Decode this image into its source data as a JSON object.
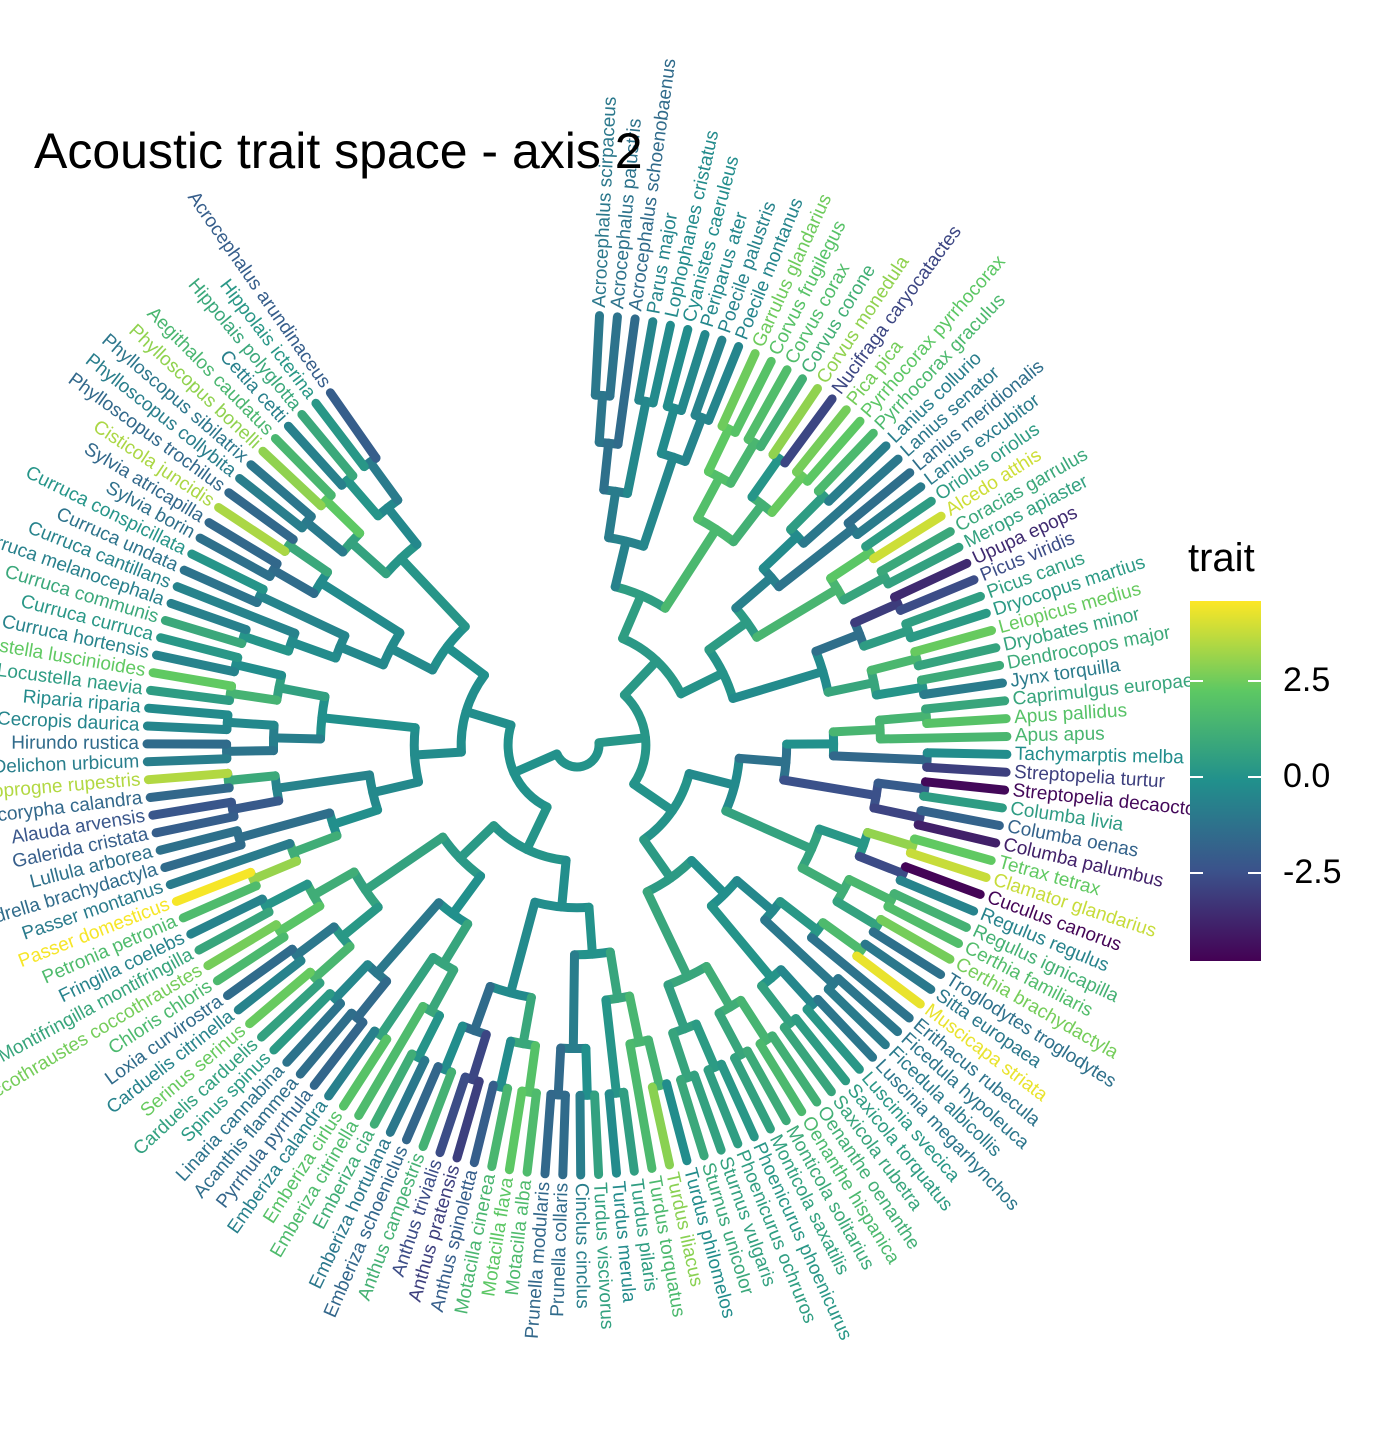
{
  "chart_data": {
    "type": "circular-phylogeny",
    "title": "Acoustic trait space - axis 2",
    "legend": {
      "title": "trait",
      "ticks": [
        2.5,
        0.0,
        -2.5
      ],
      "tick_labels": [
        "2.5",
        "0.0",
        "-2.5"
      ],
      "range": [
        -4.8,
        4.6
      ],
      "placement": "right",
      "colormap": [
        "#440154",
        "#3B528B",
        "#21908C",
        "#5DC863",
        "#FDE725"
      ]
    },
    "tips": [
      {
        "name": "Acrocephalus scirpaceus",
        "trait": -1.0
      },
      {
        "name": "Acrocephalus palustris",
        "trait": -1.2
      },
      {
        "name": "Acrocephalus schoenobaenus",
        "trait": -1.5
      },
      {
        "name": "Parus major",
        "trait": -0.5
      },
      {
        "name": "Lophophanes cristatus",
        "trait": -0.3
      },
      {
        "name": "Cyanistes caeruleus",
        "trait": -0.2
      },
      {
        "name": "Periparus ater",
        "trait": -0.4
      },
      {
        "name": "Poecile palustris",
        "trait": -0.6
      },
      {
        "name": "Poecile montanus",
        "trait": -0.5
      },
      {
        "name": "Garrulus glandarius",
        "trait": 2.5
      },
      {
        "name": "Corvus frugilegus",
        "trait": 2.0
      },
      {
        "name": "Corvus corax",
        "trait": 1.8
      },
      {
        "name": "Corvus corone",
        "trait": 1.2
      },
      {
        "name": "Corvus monedula",
        "trait": 3.0
      },
      {
        "name": "Nucifraga caryocatactes",
        "trait": -2.8
      },
      {
        "name": "Pica pica",
        "trait": 2.6
      },
      {
        "name": "Pyrrhocorax pyrrhocorax",
        "trait": 2.2
      },
      {
        "name": "Pyrrhocorax graculus",
        "trait": 1.6
      },
      {
        "name": "Lanius collurio",
        "trait": -0.8
      },
      {
        "name": "Lanius senator",
        "trait": -1.0
      },
      {
        "name": "Lanius meridionalis",
        "trait": -1.4
      },
      {
        "name": "Lanius excubitor",
        "trait": -0.9
      },
      {
        "name": "Oriolus oriolus",
        "trait": 0.4
      },
      {
        "name": "Alcedo atthis",
        "trait": 3.9
      },
      {
        "name": "Coracias garrulus",
        "trait": 0.9
      },
      {
        "name": "Merops apiaster",
        "trait": 0.6
      },
      {
        "name": "Upupa epops",
        "trait": -3.6
      },
      {
        "name": "Picus viridis",
        "trait": -2.6
      },
      {
        "name": "Picus canus",
        "trait": 0.5
      },
      {
        "name": "Dryocopus martius",
        "trait": 0.3
      },
      {
        "name": "Leiopicus medius",
        "trait": 2.4
      },
      {
        "name": "Dryobates minor",
        "trait": 0.7
      },
      {
        "name": "Dendrocopos major",
        "trait": 1.0
      },
      {
        "name": "Jynx torquilla",
        "trait": -0.9
      },
      {
        "name": "Caprimulgus europaeus",
        "trait": 0.8
      },
      {
        "name": "Apus pallidus",
        "trait": 2.0
      },
      {
        "name": "Apus apus",
        "trait": 1.5
      },
      {
        "name": "Tachymarptis melba",
        "trait": -0.2
      },
      {
        "name": "Streptopelia turtur",
        "trait": -3.0
      },
      {
        "name": "Streptopelia decaocto",
        "trait": -4.6
      },
      {
        "name": "Columba livia",
        "trait": 0.4
      },
      {
        "name": "Columba oenas",
        "trait": -1.8
      },
      {
        "name": "Columba palumbus",
        "trait": -3.9
      },
      {
        "name": "Tetrax tetrax",
        "trait": 2.3
      },
      {
        "name": "Clamator glandarius",
        "trait": 3.8
      },
      {
        "name": "Cuculus canorus",
        "trait": -4.7
      },
      {
        "name": "Regulus regulus",
        "trait": -0.6
      },
      {
        "name": "Regulus ignicapilla",
        "trait": 1.3
      },
      {
        "name": "Certhia familiaris",
        "trait": 1.8
      },
      {
        "name": "Certhia brachydactyla",
        "trait": 2.6
      },
      {
        "name": "Troglodytes troglodytes",
        "trait": -1.3
      },
      {
        "name": "Sitta europaea",
        "trait": -1.0
      },
      {
        "name": "Muscicapa striata",
        "trait": 4.3
      },
      {
        "name": "Erithacus rubecula",
        "trait": -1.2
      },
      {
        "name": "Ficedula hypoleuca",
        "trait": -1.1
      },
      {
        "name": "Ficedula albicollis",
        "trait": -0.9
      },
      {
        "name": "Luscinia megarhynchos",
        "trait": -1.1
      },
      {
        "name": "Luscinia svecica",
        "trait": 0.2
      },
      {
        "name": "Saxicola torquatus",
        "trait": 0.4
      },
      {
        "name": "Saxicola rubetra",
        "trait": 0.8
      },
      {
        "name": "Oenanthe oenanthe",
        "trait": 1.2
      },
      {
        "name": "Oenanthe hispanica",
        "trait": 1.6
      },
      {
        "name": "Monticola solitarius",
        "trait": 1.0
      },
      {
        "name": "Monticola saxatilis",
        "trait": 0.6
      },
      {
        "name": "Phoenicurus phoenicurus",
        "trait": 0.2
      },
      {
        "name": "Phoenicurus ochruros",
        "trait": 0.5
      },
      {
        "name": "Sturnus vulgaris",
        "trait": 0.6
      },
      {
        "name": "Sturnus unicolor",
        "trait": 0.9
      },
      {
        "name": "Turdus philomelos",
        "trait": -0.2
      },
      {
        "name": "Turdus iliacus",
        "trait": 2.9
      },
      {
        "name": "Turdus torquatus",
        "trait": 1.6
      },
      {
        "name": "Turdus pilaris",
        "trait": 0.5
      },
      {
        "name": "Turdus merula",
        "trait": -0.3
      },
      {
        "name": "Turdus viscivorus",
        "trait": 0.6
      },
      {
        "name": "Cinclus cinclus",
        "trait": -0.8
      },
      {
        "name": "Prunella collaris",
        "trait": -1.5
      },
      {
        "name": "Prunella modularis",
        "trait": -1.6
      },
      {
        "name": "Motacilla alba",
        "trait": 1.7
      },
      {
        "name": "Motacilla flava",
        "trait": 2.2
      },
      {
        "name": "Motacilla cinerea",
        "trait": 1.5
      },
      {
        "name": "Anthus spinoletta",
        "trait": -2.0
      },
      {
        "name": "Anthus pratensis",
        "trait": -3.0
      },
      {
        "name": "Anthus trivialis",
        "trait": -2.6
      },
      {
        "name": "Anthus campestris",
        "trait": 1.3
      },
      {
        "name": "Emberiza schoeniclus",
        "trait": -1.7
      },
      {
        "name": "Emberiza hortulana",
        "trait": -1.0
      },
      {
        "name": "Emberiza cia",
        "trait": 1.1
      },
      {
        "name": "Emberiza citrinella",
        "trait": 1.7
      },
      {
        "name": "Emberiza cirlus",
        "trait": 2.0
      },
      {
        "name": "Emberiza calandra",
        "trait": -0.7
      },
      {
        "name": "Pyrrhula pyrrhula",
        "trait": -1.7
      },
      {
        "name": "Acanthis flammea",
        "trait": -1.4
      },
      {
        "name": "Linaria cannabina",
        "trait": -1.2
      },
      {
        "name": "Spinus spinus",
        "trait": 0.3
      },
      {
        "name": "Carduelis carduelis",
        "trait": 0.6
      },
      {
        "name": "Serinus serinus",
        "trait": 2.4
      },
      {
        "name": "Carduelis citrinella",
        "trait": -0.6
      },
      {
        "name": "Loxia curvirostra",
        "trait": -1.5
      },
      {
        "name": "Chloris chloris",
        "trait": 1.6
      },
      {
        "name": "Coccothraustes coccothraustes",
        "trait": 2.6
      },
      {
        "name": "Montifringilla montifringilla",
        "trait": 0.8
      },
      {
        "name": "Fringilla coelebs",
        "trait": -0.6
      },
      {
        "name": "Petronia petronia",
        "trait": 1.7
      },
      {
        "name": "Passer domesticus",
        "trait": 4.5
      },
      {
        "name": "Passer montanus",
        "trait": -0.9
      },
      {
        "name": "Calandrella brachydactyla",
        "trait": -1.5
      },
      {
        "name": "Lullula arborea",
        "trait": -1.3
      },
      {
        "name": "Galerida cristata",
        "trait": -2.0
      },
      {
        "name": "Alauda arvensis",
        "trait": -2.3
      },
      {
        "name": "Melanocorypha calandra",
        "trait": -1.6
      },
      {
        "name": "Ptyonoprogne rupestris",
        "trait": 3.5
      },
      {
        "name": "Delichon urbicum",
        "trait": -0.8
      },
      {
        "name": "Hirundo rustica",
        "trait": -1.5
      },
      {
        "name": "Cecropis daurica",
        "trait": -0.5
      },
      {
        "name": "Riparia riparia",
        "trait": -0.3
      },
      {
        "name": "Locustella naevia",
        "trait": 0.4
      },
      {
        "name": "Locustella luscinioides",
        "trait": 2.3
      },
      {
        "name": "Curruca hortensis",
        "trait": -0.6
      },
      {
        "name": "Curruca curruca",
        "trait": 0.2
      },
      {
        "name": "Curruca communis",
        "trait": 0.9
      },
      {
        "name": "Curruca melanocephala",
        "trait": -0.7
      },
      {
        "name": "Curruca cantillans",
        "trait": -0.6
      },
      {
        "name": "Curruca undata",
        "trait": -1.2
      },
      {
        "name": "Curruca conspicillata",
        "trait": 0.1
      },
      {
        "name": "Sylvia borin",
        "trait": -1.3
      },
      {
        "name": "Sylvia atricapilla",
        "trait": -1.6
      },
      {
        "name": "Cisticola juncidis",
        "trait": 3.4
      },
      {
        "name": "Phylloscopus trochilus",
        "trait": -1.6
      },
      {
        "name": "Phylloscopus collybita",
        "trait": -0.8
      },
      {
        "name": "Phylloscopus sibilatrix",
        "trait": -1.1
      },
      {
        "name": "Phylloscopus bonelli",
        "trait": 3.0
      },
      {
        "name": "Aegithalos caudatus",
        "trait": 1.5
      },
      {
        "name": "Cettia cetti",
        "trait": -0.7
      },
      {
        "name": "Hippolais polyglotta",
        "trait": 0.9
      },
      {
        "name": "Hippolais icterina",
        "trait": 0.2
      },
      {
        "name": "Acrocephalus arundinaceus",
        "trait": -2.0
      }
    ]
  }
}
